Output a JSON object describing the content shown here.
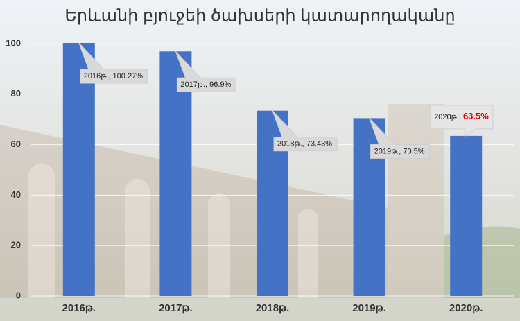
{
  "chart_data": {
    "type": "bar",
    "title": "Երևանի բյուջեի ծախսերի կատարողականը",
    "categories": [
      "2016թ.",
      "2017թ.",
      "2018թ.",
      "2019թ.",
      "2020թ."
    ],
    "values": [
      100.27,
      96.9,
      73.43,
      70.5,
      63.5
    ],
    "value_labels": [
      "2016թ., 100.27%",
      "2017թ., 96.9%",
      "2018թ., 73.43%",
      "2019թ., 70.5%",
      "2020թ., 63.5%"
    ],
    "highlight": 4,
    "highlight_color": "#e00000",
    "color": "#4472c4",
    "ylim": [
      0,
      100
    ],
    "yticks": [
      0,
      20,
      40,
      60,
      80,
      100
    ],
    "grid": true
  }
}
